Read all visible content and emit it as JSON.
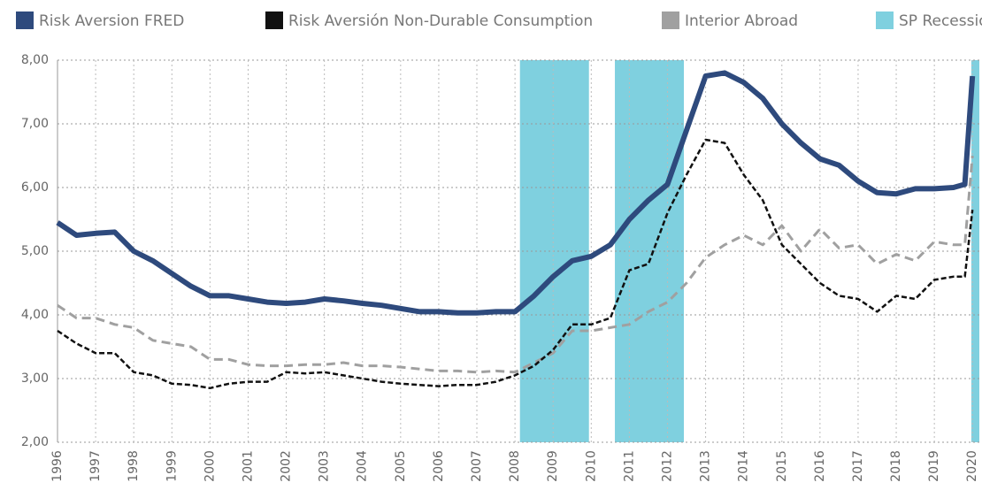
{
  "chart_data": {
    "type": "line",
    "x": [
      1996,
      1996.5,
      1997,
      1997.5,
      1998,
      1998.5,
      1999,
      1999.5,
      2000,
      2000.5,
      2001,
      2001.5,
      2002,
      2002.5,
      2003,
      2003.5,
      2004,
      2004.5,
      2005,
      2005.5,
      2006,
      2006.5,
      2007,
      2007.5,
      2008,
      2008.5,
      2009,
      2009.5,
      2010,
      2010.5,
      2011,
      2011.5,
      2012,
      2012.5,
      2013,
      2013.5,
      2014,
      2014.5,
      2015,
      2015.5,
      2016,
      2016.5,
      2017,
      2017.5,
      2018,
      2018.5,
      2019,
      2019.5,
      2019.8,
      2020
    ],
    "series": [
      {
        "name": "Risk Aversion FRED",
        "color": "#2e4a7d",
        "style": "solid",
        "values": [
          5.45,
          5.25,
          5.28,
          5.3,
          5.0,
          4.85,
          4.65,
          4.45,
          4.3,
          4.3,
          4.25,
          4.2,
          4.18,
          4.2,
          4.25,
          4.22,
          4.18,
          4.15,
          4.1,
          4.05,
          4.05,
          4.03,
          4.03,
          4.05,
          4.05,
          4.3,
          4.6,
          4.85,
          4.92,
          5.1,
          5.5,
          5.8,
          6.05,
          6.9,
          7.75,
          7.8,
          7.65,
          7.4,
          7.0,
          6.7,
          6.45,
          6.35,
          6.1,
          5.92,
          5.9,
          5.98,
          5.98,
          6.0,
          6.05,
          7.75
        ]
      },
      {
        "name": "Risk Aversión Non-Durable Consumption",
        "color": "#111111",
        "style": "dashed",
        "values": [
          3.75,
          3.55,
          3.4,
          3.4,
          3.1,
          3.05,
          2.92,
          2.9,
          2.85,
          2.92,
          2.95,
          2.95,
          3.1,
          3.08,
          3.1,
          3.05,
          3.0,
          2.95,
          2.92,
          2.9,
          2.88,
          2.9,
          2.9,
          2.95,
          3.05,
          3.2,
          3.45,
          3.85,
          3.85,
          3.95,
          4.7,
          4.8,
          5.6,
          6.2,
          6.75,
          6.7,
          6.2,
          5.8,
          5.1,
          4.8,
          4.5,
          4.3,
          4.25,
          4.05,
          4.3,
          4.25,
          4.55,
          4.6,
          4.6,
          5.65
        ]
      },
      {
        "name": "Interior Abroad",
        "color": "#a0a0a0",
        "style": "dashed",
        "values": [
          4.15,
          3.95,
          3.95,
          3.85,
          3.8,
          3.6,
          3.55,
          3.5,
          3.3,
          3.3,
          3.22,
          3.2,
          3.2,
          3.22,
          3.22,
          3.25,
          3.2,
          3.2,
          3.18,
          3.15,
          3.12,
          3.12,
          3.1,
          3.12,
          3.1,
          3.25,
          3.4,
          3.75,
          3.75,
          3.8,
          3.85,
          4.05,
          4.2,
          4.5,
          4.9,
          5.1,
          5.25,
          5.1,
          5.4,
          5.0,
          5.35,
          5.05,
          5.1,
          4.8,
          4.95,
          4.85,
          5.15,
          5.1,
          5.1,
          6.5
        ]
      }
    ],
    "shaded_regions": {
      "name": "SP Recessions",
      "color": "#7fd0df",
      "spans": [
        [
          2008.13,
          2009.94
        ],
        [
          2010.62,
          2012.43
        ],
        [
          2019.97,
          2020.18
        ]
      ]
    },
    "xlim": [
      1996,
      2020.18
    ],
    "xticks": [
      1996,
      1997,
      1998,
      1999,
      2000,
      2001,
      2002,
      2003,
      2004,
      2005,
      2006,
      2007,
      2008,
      2009,
      2010,
      2011,
      2012,
      2013,
      2014,
      2015,
      2016,
      2017,
      2018,
      2019,
      2020
    ],
    "ylim": [
      2,
      8
    ],
    "yticks": [
      {
        "value": 2,
        "label": "2,00"
      },
      {
        "value": 3,
        "label": "3,00"
      },
      {
        "value": 4,
        "label": "4,00"
      },
      {
        "value": 5,
        "label": "5,00"
      },
      {
        "value": 6,
        "label": "6,00"
      },
      {
        "value": 7,
        "label": "7,00"
      },
      {
        "value": 8,
        "label": "8,00"
      }
    ],
    "grid": true,
    "legend": "top"
  }
}
